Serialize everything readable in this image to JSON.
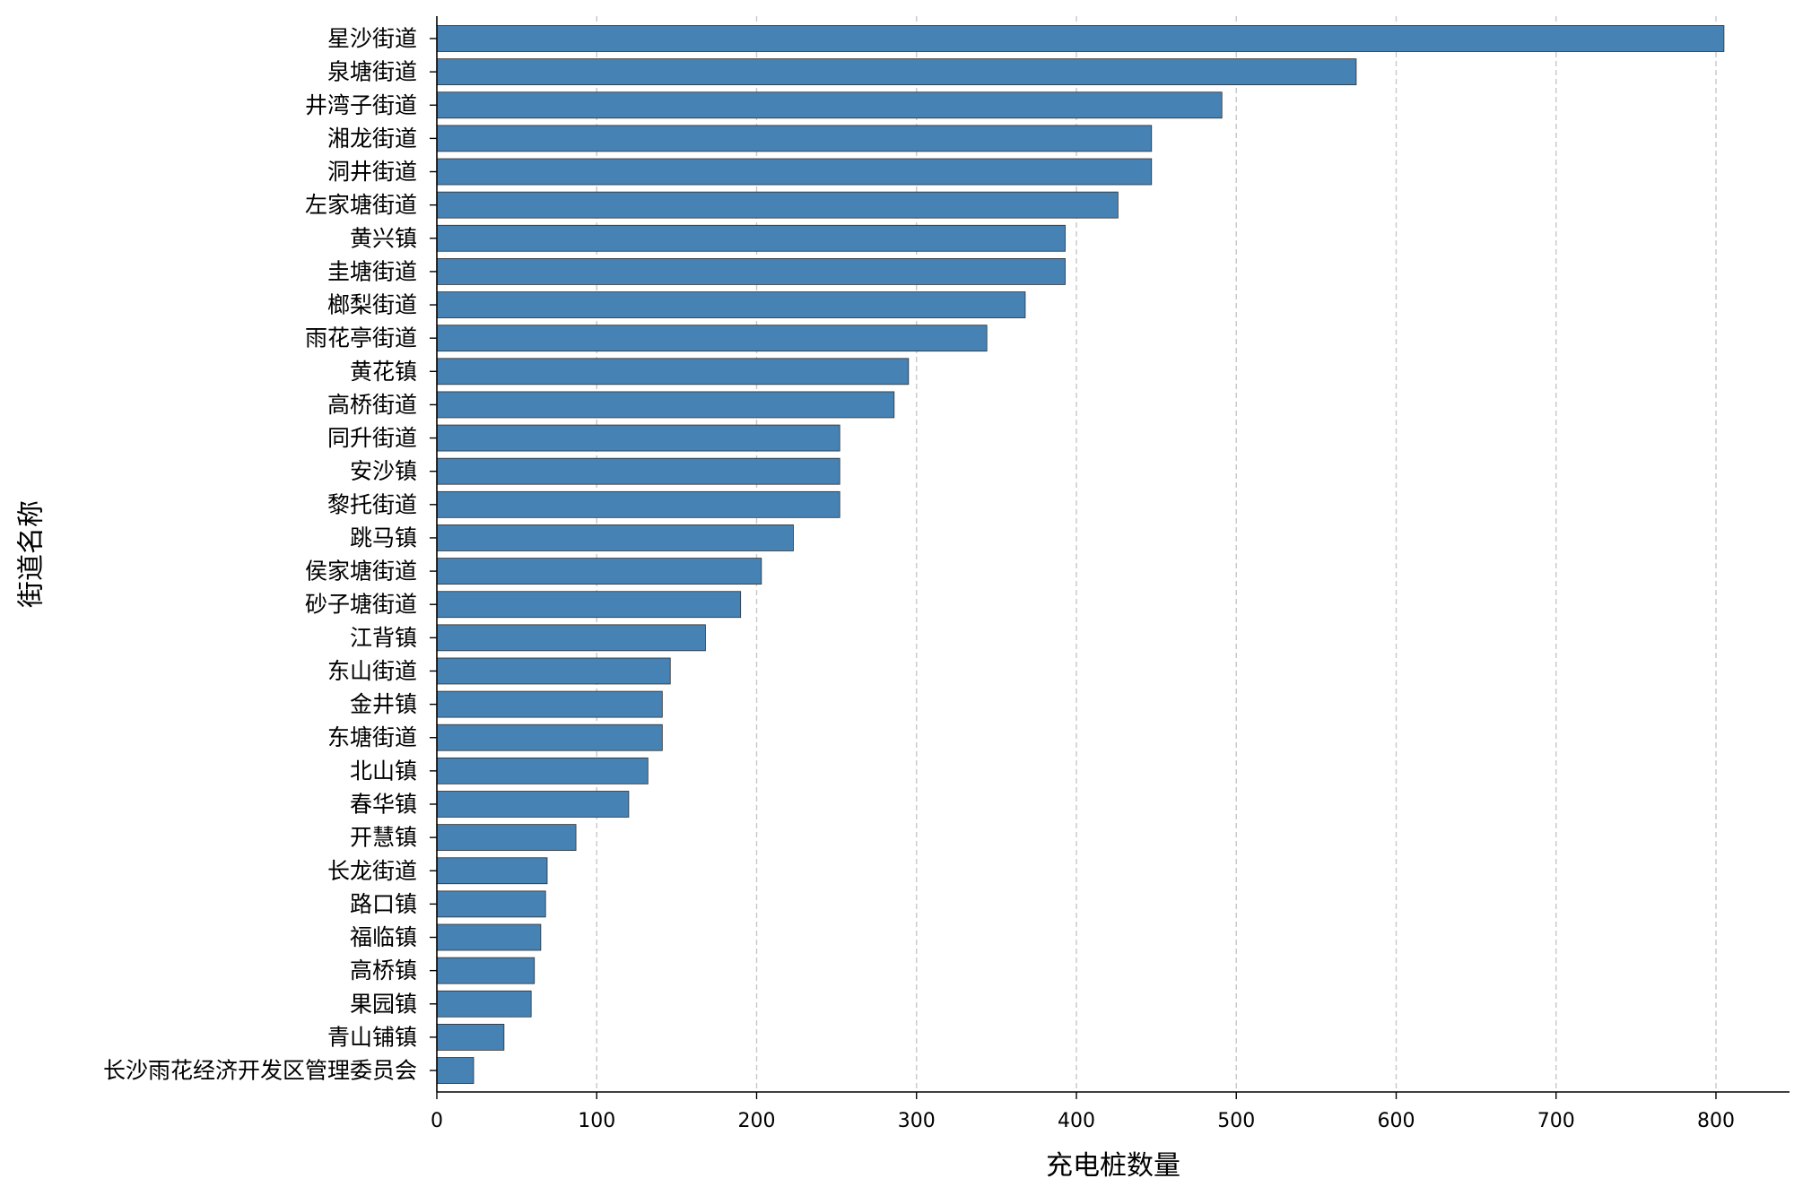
{
  "chart_data": {
    "type": "bar",
    "orientation": "horizontal",
    "title": "",
    "xlabel": "充电桩数量",
    "ylabel": "街道名称",
    "xlim": [
      0,
      845
    ],
    "xticks": [
      0,
      100,
      200,
      300,
      400,
      500,
      600,
      700,
      800
    ],
    "grid": "x-dashed",
    "legend": "none",
    "bar_color": "#4682b4",
    "categories": [
      "星沙街道",
      "泉塘街道",
      "井湾子街道",
      "湘龙街道",
      "洞井街道",
      "左家塘街道",
      "黄兴镇",
      "圭塘街道",
      "榔梨街道",
      "雨花亭街道",
      "黄花镇",
      "高桥街道",
      "同升街道",
      "安沙镇",
      "黎托街道",
      "跳马镇",
      "侯家塘街道",
      "砂子塘街道",
      "江背镇",
      "东山街道",
      "金井镇",
      "东塘街道",
      "北山镇",
      "春华镇",
      "开慧镇",
      "长龙街道",
      "路口镇",
      "福临镇",
      "高桥镇",
      "果园镇",
      "青山铺镇",
      "长沙雨花经济开发区管理委员会"
    ],
    "values": [
      805,
      575,
      491,
      447,
      447,
      426,
      393,
      393,
      368,
      344,
      295,
      286,
      252,
      252,
      252,
      223,
      203,
      190,
      168,
      146,
      141,
      141,
      132,
      120,
      87,
      69,
      68,
      65,
      61,
      59,
      42,
      23
    ]
  }
}
